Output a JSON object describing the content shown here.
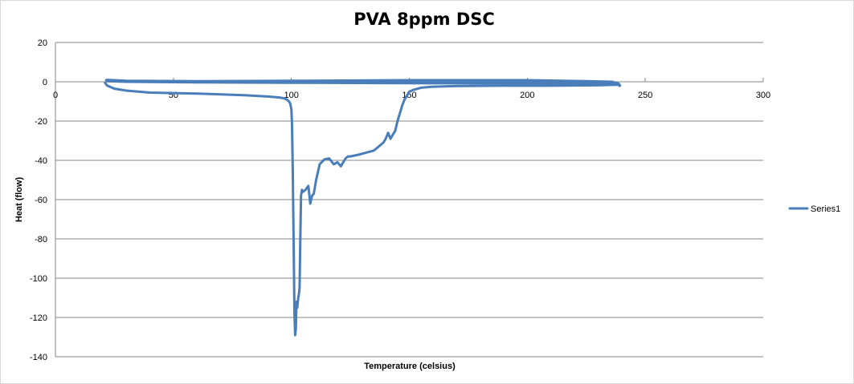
{
  "chart_data": {
    "type": "line",
    "title": "PVA 8ppm DSC",
    "xlabel": "Temperature (celsius)",
    "ylabel": "Heat (flow)",
    "xlim": [
      0,
      300
    ],
    "ylim": [
      -140,
      20
    ],
    "x_ticks": [
      0,
      50,
      100,
      150,
      200,
      250,
      300
    ],
    "y_ticks": [
      20,
      0,
      -20,
      -40,
      -60,
      -80,
      -100,
      -120,
      -140
    ],
    "grid": "horizontal",
    "legend": "right",
    "series_color": "#4a7ebb",
    "series": [
      {
        "name": "Series1",
        "x": [
          21,
          22,
          25,
          30,
          40,
          60,
          80,
          90,
          95,
          97,
          98,
          99,
          99.5,
          100,
          100.3,
          100.6,
          101,
          101.3,
          101.6,
          101.9,
          102.2,
          102.5,
          102.9,
          103.2,
          103.5,
          103.8,
          104.1,
          104.5,
          105,
          105.5,
          106,
          106.6,
          107.2,
          108,
          108.8,
          109.5,
          110.5,
          112,
          114,
          116,
          118,
          119.5,
          121,
          122,
          123,
          124,
          125,
          127,
          129,
          132,
          135,
          137,
          139,
          140,
          141,
          142,
          143,
          144,
          145,
          146,
          147,
          148,
          149,
          150,
          152,
          155,
          160,
          170,
          190,
          210,
          230,
          236,
          238,
          239,
          239.3,
          238.8,
          236,
          225,
          200,
          150,
          100,
          60,
          30,
          22,
          21.5,
          22,
          30,
          60,
          100,
          150,
          200,
          235,
          238.5,
          239,
          238.6,
          236,
          220,
          190,
          150,
          120,
          80,
          50,
          30,
          23,
          22
        ],
        "y": [
          -0.5,
          -2,
          -3.5,
          -4.5,
          -5.5,
          -6,
          -6.8,
          -7.5,
          -8,
          -8.5,
          -9,
          -10,
          -11,
          -14,
          -22,
          -45,
          -85,
          -118,
          -129,
          -126,
          -112,
          -115,
          -110,
          -108,
          -105,
          -80,
          -58,
          -55,
          -56,
          -55.5,
          -55,
          -54,
          -53,
          -62,
          -58,
          -57,
          -50,
          -42,
          -39.5,
          -39,
          -42,
          -41,
          -43,
          -41,
          -39,
          -38,
          -38,
          -37.5,
          -37,
          -36,
          -35,
          -33,
          -31,
          -29,
          -26,
          -29,
          -27,
          -25,
          -20,
          -16,
          -12,
          -9,
          -7,
          -5,
          -4,
          -3,
          -2.5,
          -2.2,
          -2,
          -2,
          -1.8,
          -1.6,
          -1.5,
          -1.5,
          -2,
          -1,
          0,
          0.3,
          0.8,
          0.8,
          0.5,
          0.3,
          0.5,
          1,
          0.8,
          0.3,
          0,
          -0.3,
          -0.5,
          -0.7,
          -0.9,
          -1,
          -1,
          -2,
          -1.5,
          -0.4,
          0,
          0.2,
          0.3,
          0.3,
          0.2,
          0,
          0.2,
          0.5,
          0.3
        ]
      }
    ]
  }
}
